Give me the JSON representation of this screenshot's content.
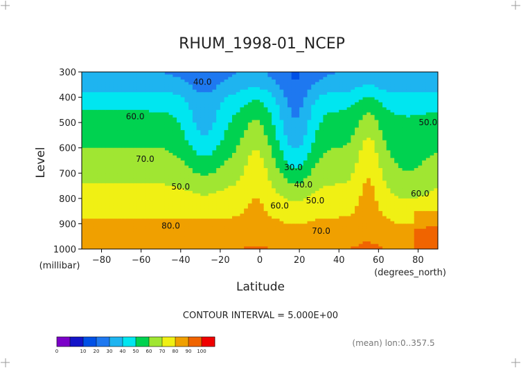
{
  "chart_data": {
    "type": "contour",
    "title": "RHUM_1998-01_NCEP",
    "xlabel": "Latitude",
    "ylabel": "Level",
    "x_units": "(degrees_north)",
    "y_units": "(millibar)",
    "xlim": [
      -90,
      90
    ],
    "ylim": [
      1000,
      300
    ],
    "x_ticks": [
      -80,
      -60,
      -40,
      -20,
      0,
      20,
      40,
      60,
      80
    ],
    "y_ticks": [
      300,
      400,
      500,
      600,
      700,
      800,
      900,
      1000
    ],
    "contour_interval_text": "CONTOUR INTERVAL = 5.000E+00",
    "contour_labels": [
      {
        "text": "40.0",
        "x": -29,
        "y": 350
      },
      {
        "text": "60.0",
        "x": -63,
        "y": 487
      },
      {
        "text": "70.0",
        "x": -58,
        "y": 655
      },
      {
        "text": "50.0",
        "x": -40,
        "y": 765
      },
      {
        "text": "80.0",
        "x": -45,
        "y": 920
      },
      {
        "text": "30.0",
        "x": 17,
        "y": 688
      },
      {
        "text": "40.0",
        "x": 22,
        "y": 757
      },
      {
        "text": "50.0",
        "x": 28,
        "y": 820
      },
      {
        "text": "60.0",
        "x": 10,
        "y": 840
      },
      {
        "text": "70.0",
        "x": 31,
        "y": 940
      },
      {
        "text": "50.0",
        "x": 85,
        "y": 510
      },
      {
        "text": "60.0",
        "x": 81,
        "y": 792
      }
    ],
    "colorbar": {
      "levels": [
        0,
        10,
        20,
        30,
        40,
        50,
        60,
        70,
        80,
        90,
        100
      ],
      "colors": [
        "#7b00c8",
        "#1414c8",
        "#0050e6",
        "#1e78f0",
        "#1eb4f0",
        "#00e6f0",
        "#00d250",
        "#a0e632",
        "#f0f014",
        "#f0a000",
        "#f06400",
        "#f00000"
      ]
    },
    "footer": "(mean) lon:0..357.5"
  }
}
